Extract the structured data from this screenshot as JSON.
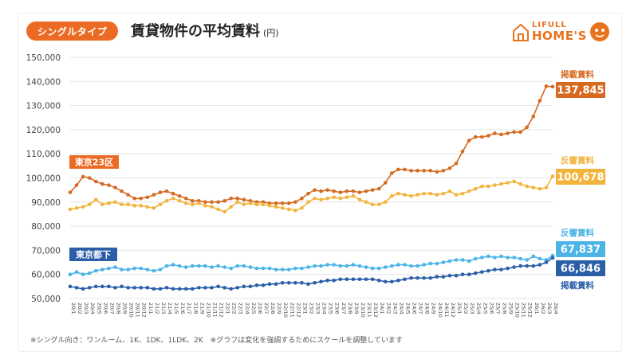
{
  "header": {
    "tag_label": "シングルタイプ",
    "title": "賃貸物件の平均賃料",
    "unit": "(円)"
  },
  "logo": {
    "line1": "LIFULL",
    "line2": "HOME'S"
  },
  "footnote": "※シングル向き：ワンルーム、1K、1DK、1LDK、2K　※グラフは変化を強調するためにスケールを調整しています",
  "colors": {
    "tokyo23_listed": "#d66a20",
    "tokyo23_response": "#f2b43c",
    "tokyo_lower_response": "#4cb4e6",
    "tokyo_lower_listed": "#2a5fa8",
    "tag_orange": "#ec6b24",
    "navy_label": "#2a5fa8"
  },
  "chart_data": {
    "type": "line",
    "ylim": [
      50000,
      150000
    ],
    "yticks": [
      "50,000",
      "60,000",
      "70,000",
      "80,000",
      "90,000",
      "100,000",
      "110,000",
      "120,000",
      "130,000",
      "140,000",
      "150,000"
    ],
    "ytick_values": [
      50000,
      60000,
      70000,
      80000,
      90000,
      100000,
      110000,
      120000,
      130000,
      140000,
      150000
    ],
    "x": [
      "20/1",
      "20/2",
      "20/3",
      "20/4",
      "20/5",
      "20/6",
      "20/7",
      "20/8",
      "20/9",
      "20/10",
      "20/11",
      "20/12",
      "21/1",
      "21/2",
      "21/3",
      "21/4",
      "21/5",
      "21/6",
      "21/7",
      "21/8",
      "21/9",
      "21/10",
      "21/11",
      "21/12",
      "22/1",
      "22/2",
      "22/3",
      "22/4",
      "22/5",
      "22/6",
      "22/7",
      "22/8",
      "22/9",
      "22/10",
      "22/11",
      "22/12",
      "23/1",
      "23/2",
      "23/3",
      "23/4",
      "23/5",
      "23/6",
      "23/7",
      "23/8",
      "23/9",
      "23/10",
      "23/11",
      "23/12",
      "24/1",
      "24/2",
      "24/3",
      "24/4",
      "24/5",
      "24/6",
      "24/7",
      "24/8",
      "24/9",
      "24/10",
      "24/11",
      "24/12",
      "25/1",
      "25/2",
      "25/3",
      "25/4",
      "25/5",
      "25/6",
      "25/7",
      "25/8",
      "25/9",
      "25/10",
      "25/11",
      "25/12",
      "26/1",
      "26/2",
      "26/3",
      "26/4"
    ],
    "region_labels": {
      "tokyo23": "東京23区",
      "tokyo_lower": "東京都下"
    },
    "series": [
      {
        "key": "tokyo23_listed",
        "name": "掲載賃料",
        "region": "東京23区",
        "end_label": "137,845",
        "values": [
          94000,
          97000,
          100500,
          100000,
          98500,
          97500,
          97000,
          96000,
          94500,
          93000,
          91500,
          91500,
          92000,
          93000,
          94000,
          94500,
          93500,
          92500,
          91500,
          90500,
          90500,
          90000,
          90000,
          90000,
          90500,
          91500,
          91500,
          91000,
          90500,
          90000,
          90000,
          89500,
          89500,
          89500,
          89500,
          90000,
          91500,
          93500,
          95000,
          94500,
          95000,
          94500,
          94000,
          94500,
          94500,
          94000,
          94500,
          95000,
          95500,
          98000,
          102000,
          103500,
          103500,
          103000,
          103000,
          103000,
          103000,
          102500,
          103000,
          104000,
          106000,
          111000,
          115500,
          117000,
          117000,
          117500,
          118500,
          118000,
          118500,
          119000,
          119000,
          121000,
          125500,
          132000,
          138000,
          137845
        ]
      },
      {
        "key": "tokyo23_response",
        "name": "反響賃料",
        "region": "東京23区",
        "end_label": "100,678",
        "values": [
          87000,
          87500,
          88000,
          89000,
          91000,
          89000,
          89500,
          90000,
          89000,
          89000,
          88500,
          88500,
          88000,
          87500,
          89000,
          90500,
          91500,
          90500,
          89500,
          89000,
          89500,
          88500,
          88000,
          87000,
          86000,
          88000,
          90000,
          89000,
          89500,
          89000,
          89000,
          88500,
          88000,
          87500,
          87000,
          86500,
          87500,
          90000,
          91500,
          91000,
          91500,
          92000,
          91500,
          92000,
          92500,
          91000,
          90000,
          89000,
          89000,
          90000,
          92500,
          93500,
          93000,
          92500,
          93000,
          93500,
          93500,
          93000,
          93500,
          94500,
          93000,
          93500,
          94500,
          95500,
          96500,
          96500,
          97000,
          97500,
          98000,
          98500,
          97500,
          96500,
          96000,
          95500,
          96000,
          100678
        ]
      },
      {
        "key": "tokyo_lower_response",
        "name": "反響賃料",
        "region": "東京都下",
        "end_label": "67,837",
        "values": [
          60000,
          61000,
          60000,
          60500,
          61500,
          62000,
          62500,
          63000,
          62000,
          62000,
          62500,
          62500,
          62000,
          61500,
          62000,
          63500,
          64000,
          63500,
          63000,
          63500,
          63500,
          63500,
          63000,
          63500,
          63000,
          62500,
          63500,
          63500,
          63000,
          62500,
          62500,
          62500,
          62000,
          62000,
          62000,
          62500,
          62500,
          63000,
          63500,
          63500,
          64000,
          64000,
          63500,
          63500,
          64000,
          63500,
          63000,
          62500,
          62500,
          63000,
          63500,
          64000,
          64000,
          63500,
          63500,
          64000,
          64500,
          64500,
          65000,
          65500,
          66000,
          66000,
          65500,
          66500,
          67000,
          67500,
          67000,
          67500,
          67000,
          67000,
          66500,
          66000,
          67500,
          66500,
          66000,
          67837
        ]
      },
      {
        "key": "tokyo_lower_listed",
        "name": "掲載賃料",
        "region": "東京都下",
        "end_label": "66,846",
        "values": [
          55000,
          54500,
          54000,
          54500,
          55000,
          55000,
          55000,
          54500,
          55000,
          54500,
          54500,
          54500,
          54500,
          54000,
          54000,
          54500,
          54000,
          54000,
          54000,
          54000,
          54500,
          54500,
          54500,
          55000,
          54500,
          54000,
          54500,
          55000,
          55000,
          55500,
          55500,
          56000,
          56000,
          56500,
          56500,
          56500,
          56500,
          56000,
          56500,
          57000,
          57500,
          57500,
          58000,
          58000,
          58000,
          58000,
          58000,
          58000,
          57500,
          57000,
          57000,
          57500,
          58000,
          58500,
          58500,
          58500,
          58500,
          59000,
          59000,
          59500,
          59500,
          60000,
          60000,
          60500,
          61000,
          61500,
          62000,
          62000,
          62500,
          63000,
          63500,
          63500,
          63500,
          64000,
          65000,
          66846
        ]
      }
    ]
  }
}
